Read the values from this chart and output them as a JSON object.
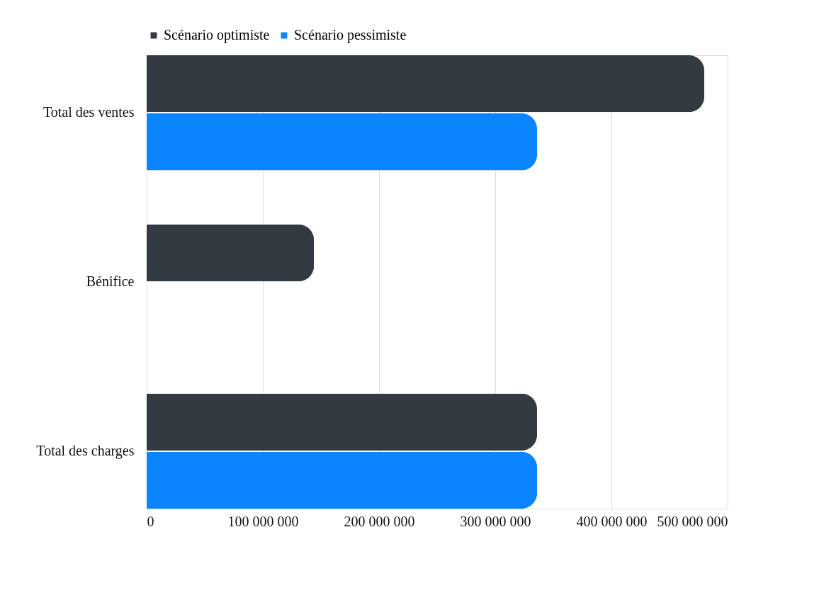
{
  "chart_data": {
    "type": "bar",
    "orientation": "horizontal",
    "categories": [
      "Total des ventes",
      "Bénifice",
      "Total des charges"
    ],
    "series": [
      {
        "name": "Scénario optimiste",
        "color": "#343a42",
        "values": [
          480000000,
          144000000,
          336000000
        ]
      },
      {
        "name": "Scénario pessimiste",
        "color": "#0a84ff",
        "values": [
          336000000,
          0,
          336000000
        ]
      }
    ],
    "xlim": [
      0,
      500000000
    ],
    "xticks": [
      0,
      {
        "value": 100000000,
        "label": "100 000 000"
      },
      {
        "value": 200000000,
        "label": "200 000 000"
      },
      {
        "value": 300000000,
        "label": "300 000 000"
      },
      {
        "value": 400000000,
        "label": "400 000 000"
      },
      {
        "value": 500000000,
        "label": "500 000 000"
      }
    ],
    "grid": "x",
    "legend": "top"
  }
}
